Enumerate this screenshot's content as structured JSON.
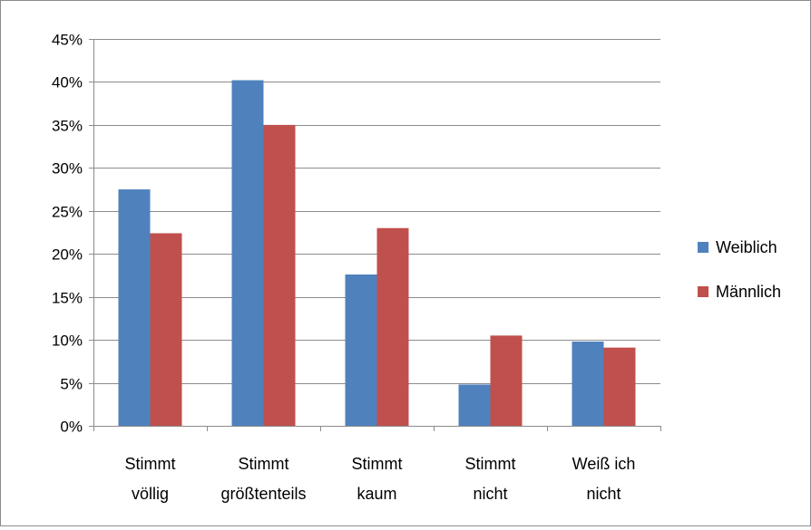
{
  "chart_data": {
    "type": "bar",
    "title": "",
    "xlabel": "",
    "ylabel": "",
    "categories": [
      [
        "Stimmt",
        "völlig"
      ],
      [
        "Stimmt",
        "größtenteils"
      ],
      [
        "Stimmt",
        "kaum"
      ],
      [
        "Stimmt",
        "nicht"
      ],
      [
        "Weiß ich",
        "nicht"
      ]
    ],
    "series": [
      {
        "name": "Weiblich",
        "color": "#4F81BD",
        "values": [
          27.5,
          40.2,
          17.6,
          4.8,
          9.8
        ]
      },
      {
        "name": "Männlich",
        "color": "#C0504D",
        "values": [
          22.4,
          35.0,
          23.0,
          10.5,
          9.1
        ]
      }
    ],
    "ylim": [
      0,
      45
    ],
    "yticks": [
      0,
      5,
      10,
      15,
      20,
      25,
      30,
      35,
      40,
      45
    ],
    "ytick_labels": [
      "0%",
      "5%",
      "10%",
      "15%",
      "20%",
      "25%",
      "30%",
      "35%",
      "40%",
      "45%"
    ],
    "grid": true,
    "legend_position": "right"
  }
}
